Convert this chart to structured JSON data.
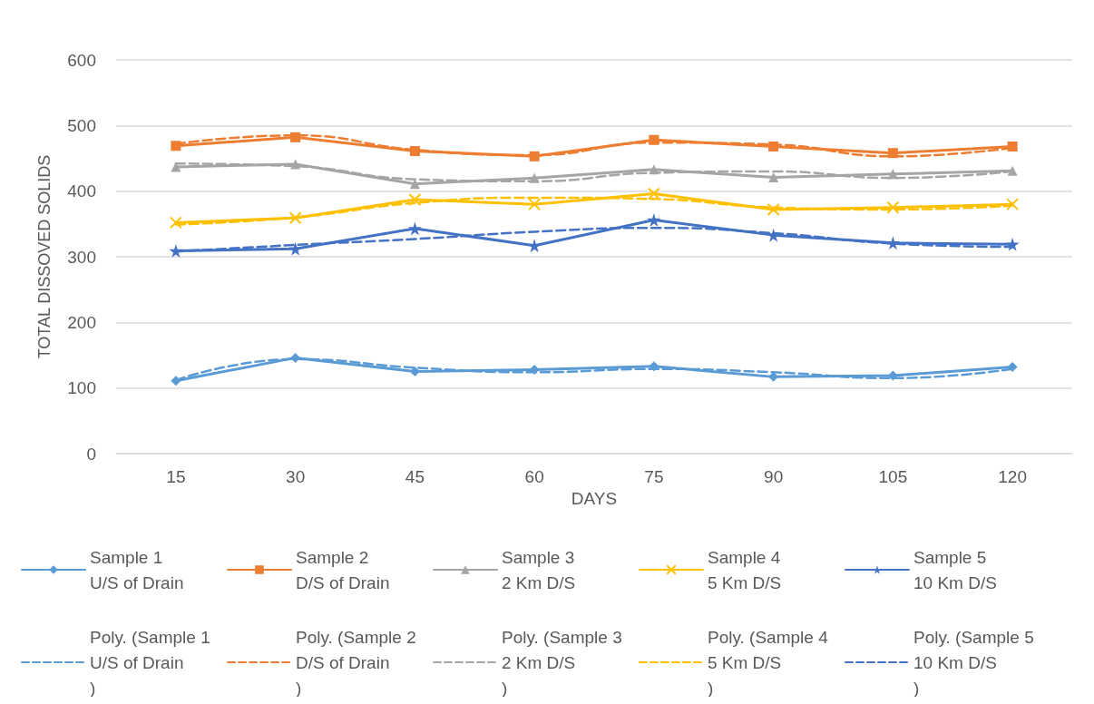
{
  "chart_data": {
    "type": "line",
    "xlabel": "DAYS",
    "ylabel": "TOTAL DISSOVED SOLIDS",
    "categories": [
      "15",
      "30",
      "45",
      "60",
      "75",
      "90",
      "105",
      "120"
    ],
    "ylim": [
      0,
      600
    ],
    "yticks": [
      0,
      100,
      200,
      300,
      400,
      500,
      600
    ],
    "grid": "y",
    "legend": "bottom",
    "series": [
      {
        "name": "Sample 1\nU/S of Drain",
        "color": "#5b9bd5",
        "marker": "diamond",
        "values": [
          111,
          146,
          125,
          128,
          133,
          117,
          119,
          132
        ]
      },
      {
        "name": "Sample 2\nD/S of Drain",
        "color": "#ed7d31",
        "marker": "square",
        "values": [
          469,
          482,
          461,
          453,
          478,
          468,
          458,
          468
        ]
      },
      {
        "name": "Sample 3\n2 Km D/S",
        "color": "#a5a5a5",
        "marker": "triangle",
        "values": [
          437,
          441,
          411,
          420,
          433,
          421,
          426,
          431
        ]
      },
      {
        "name": "Sample 4\n5 Km D/S",
        "color": "#ffc000",
        "marker": "cross",
        "values": [
          352,
          359,
          387,
          380,
          396,
          372,
          375,
          380
        ]
      },
      {
        "name": "Sample 5\n10 Km D/S",
        "color": "#4472c4",
        "marker": "star",
        "values": [
          309,
          312,
          343,
          317,
          356,
          333,
          321,
          319
        ]
      },
      {
        "name": "Poly. (Sample 1\nU/S of Drain\n)",
        "color": "#5b9bd5",
        "marker": "none",
        "line_style": "dashed",
        "values": [
          112,
          144,
          131,
          124,
          129,
          124,
          115,
          129
        ]
      },
      {
        "name": "Poly. (Sample 2\nD/S of Drain\n)",
        "color": "#ed7d31",
        "marker": "none",
        "line_style": "dashed",
        "values": [
          472,
          485,
          463,
          455,
          474,
          471,
          453,
          466
        ]
      },
      {
        "name": "Poly. (Sample 3\n2 Km D/S\n)",
        "color": "#a5a5a5",
        "marker": "none",
        "line_style": "dashed",
        "values": [
          442,
          438,
          418,
          415,
          428,
          430,
          420,
          430
        ]
      },
      {
        "name": "Poly. (Sample 4\n5 Km D/S\n)",
        "color": "#ffc000",
        "marker": "none",
        "line_style": "dashed",
        "values": [
          349,
          360,
          382,
          390,
          388,
          375,
          372,
          378
        ]
      },
      {
        "name": "Poly. (Sample 5\n10 Km D/S\n)",
        "color": "#4472c4",
        "marker": "none",
        "line_style": "dashed",
        "values": [
          308,
          318,
          327,
          338,
          344,
          336,
          320,
          315
        ]
      }
    ]
  }
}
